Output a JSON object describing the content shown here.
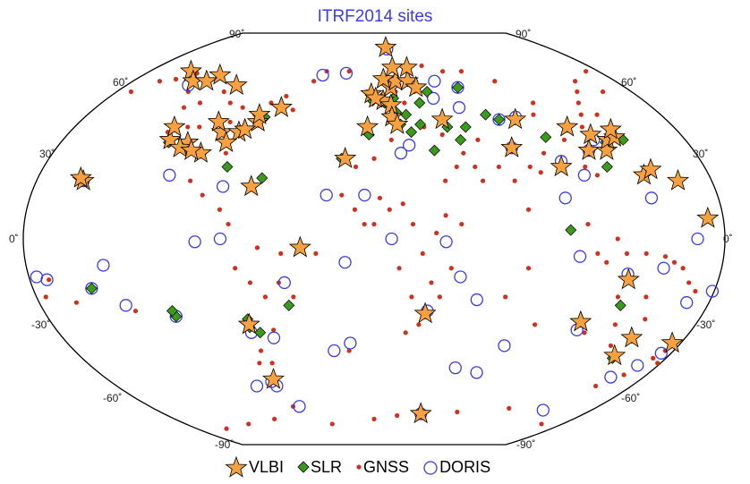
{
  "title": "ITRF2014 sites",
  "lat_labels": {
    "top_left": "90˚",
    "top_right": "90˚",
    "bottom_left": "-90˚",
    "bottom_right": "-90˚",
    "left": [
      "60˚",
      "30˚",
      "0˚",
      "-30˚",
      "-60˚"
    ],
    "right": [
      "60˚",
      "30˚",
      "0˚",
      "-30˚",
      "-60˚"
    ]
  },
  "legend": {
    "vlbi": "VLBI",
    "slr": "SLR",
    "gnss": "GNSS",
    "doris": "DORIS"
  },
  "colors": {
    "vlbi": "#f7a040",
    "slr": "#3a9a1c",
    "gnss": "#d03020",
    "doris": "#3a3aee",
    "title": "#3a3aee"
  },
  "sites": {
    "vlbi": [
      [
        -155,
        20
      ],
      [
        -157,
        21
      ],
      [
        -147,
        65
      ],
      [
        -120,
        63
      ],
      [
        -135,
        60
      ],
      [
        -125,
        60
      ],
      [
        -100,
        58
      ],
      [
        -118,
        35
      ],
      [
        -107,
        34
      ],
      [
        -110,
        32
      ],
      [
        -97,
        30
      ],
      [
        -90,
        38
      ],
      [
        -80,
        38
      ],
      [
        -71,
        42
      ],
      [
        -77,
        39
      ],
      [
        -72,
        45
      ],
      [
        -85,
        34
      ],
      [
        -103,
        31
      ],
      [
        -120,
        40
      ],
      [
        -95,
        42
      ],
      [
        -65,
        18
      ],
      [
        -38,
        -3
      ],
      [
        -70,
        -30
      ],
      [
        -68,
        -52
      ],
      [
        -60,
        48
      ],
      [
        -16,
        28
      ],
      [
        -4,
        40
      ],
      [
        6,
        51
      ],
      [
        11,
        49
      ],
      [
        11,
        44
      ],
      [
        12,
        57
      ],
      [
        14,
        41
      ],
      [
        16,
        60
      ],
      [
        25,
        60
      ],
      [
        27,
        67
      ],
      [
        12,
        79
      ],
      [
        30,
        57
      ],
      [
        42,
        43
      ],
      [
        78,
        32
      ],
      [
        87,
        43
      ],
      [
        102,
        25
      ],
      [
        116,
        40
      ],
      [
        121,
        31
      ],
      [
        127,
        37
      ],
      [
        131,
        31
      ],
      [
        135,
        35
      ],
      [
        140,
        36
      ],
      [
        141,
        39
      ],
      [
        145,
        22
      ],
      [
        150,
        24
      ],
      [
        162,
        20
      ],
      [
        172,
        7
      ],
      [
        147,
        -42
      ],
      [
        133,
        -14
      ],
      [
        115,
        -29
      ],
      [
        149,
        -35
      ],
      [
        175,
        -37
      ],
      [
        40,
        -69
      ],
      [
        28,
        -26
      ],
      [
        7,
        61
      ],
      [
        15,
        67
      ],
      [
        -2,
        54
      ],
      [
        1,
        52
      ]
    ],
    "slr": [
      [
        -156,
        21
      ],
      [
        -149,
        -17
      ],
      [
        -109,
        -27
      ],
      [
        -110,
        -25
      ],
      [
        -70,
        -31
      ],
      [
        -70,
        -28
      ],
      [
        -46,
        -23
      ],
      [
        -118,
        34
      ],
      [
        -105,
        31
      ],
      [
        -97,
        30
      ],
      [
        -77,
        39
      ],
      [
        -71,
        42
      ],
      [
        -80,
        25
      ],
      [
        -65,
        -33
      ],
      [
        -1,
        51
      ],
      [
        5,
        52
      ],
      [
        7,
        50
      ],
      [
        11,
        49
      ],
      [
        13,
        52
      ],
      [
        14,
        46
      ],
      [
        16,
        41
      ],
      [
        -3,
        37
      ],
      [
        25,
        60
      ],
      [
        20,
        45
      ],
      [
        30,
        50
      ],
      [
        37,
        55
      ],
      [
        44,
        40
      ],
      [
        22,
        38
      ],
      [
        28,
        41
      ],
      [
        34,
        31
      ],
      [
        60,
        57
      ],
      [
        70,
        45
      ],
      [
        77,
        43
      ],
      [
        87,
        43
      ],
      [
        100,
        36
      ],
      [
        116,
        40
      ],
      [
        121,
        31
      ],
      [
        127,
        37
      ],
      [
        133,
        34
      ],
      [
        139,
        36
      ],
      [
        144,
        35
      ],
      [
        127,
        25
      ],
      [
        28,
        -26
      ],
      [
        115,
        -29
      ],
      [
        149,
        -35
      ],
      [
        147,
        -43
      ],
      [
        133,
        -23
      ],
      [
        -18,
        28
      ],
      [
        -68,
        44
      ],
      [
        -60,
        21
      ],
      [
        101,
        3
      ],
      [
        55,
        40
      ],
      [
        50,
        35
      ]
    ],
    "doris": [
      [
        -155,
        20
      ],
      [
        -135,
        58
      ],
      [
        -176,
        -13
      ],
      [
        -171,
        -14
      ],
      [
        -149,
        -17
      ],
      [
        -140,
        -9
      ],
      [
        -109,
        -27
      ],
      [
        -134,
        -23
      ],
      [
        -79,
        0
      ],
      [
        -92,
        -1
      ],
      [
        -110,
        22
      ],
      [
        -80,
        18
      ],
      [
        -70,
        -33
      ],
      [
        -70,
        -53
      ],
      [
        -68,
        -55
      ],
      [
        -58,
        -35
      ],
      [
        -47,
        -15
      ],
      [
        -82,
        -55
      ],
      [
        -25,
        15
      ],
      [
        -15,
        -8
      ],
      [
        -5,
        15
      ],
      [
        9,
        0
      ],
      [
        15,
        30
      ],
      [
        -24,
        -40
      ],
      [
        20,
        33
      ],
      [
        37,
        -1
      ],
      [
        45,
        -13
      ],
      [
        55,
        -21
      ],
      [
        67,
        -49
      ],
      [
        52,
        -47
      ],
      [
        77,
        -38
      ],
      [
        -14,
        -37
      ],
      [
        78,
        32
      ],
      [
        45,
        60
      ],
      [
        55,
        48
      ],
      [
        60,
        57
      ],
      [
        77,
        43
      ],
      [
        88,
        44
      ],
      [
        103,
        27
      ],
      [
        121,
        31
      ],
      [
        127,
        35
      ],
      [
        140,
        -67
      ],
      [
        167,
        -46
      ],
      [
        158,
        -51
      ],
      [
        168,
        -22
      ],
      [
        174,
        -41
      ],
      [
        179,
        -18
      ],
      [
        166,
        0
      ],
      [
        145,
        14
      ],
      [
        132,
        -12
      ],
      [
        115,
        -32
      ],
      [
        150,
        -10
      ],
      [
        -40,
        63
      ],
      [
        -22,
        64
      ],
      [
        13,
        78
      ],
      [
        29,
        -25
      ],
      [
        -60,
        -65
      ],
      [
        40,
        -69
      ],
      [
        100,
        14
      ],
      [
        106,
        -6
      ],
      [
        113,
        22
      ],
      [
        40,
        52
      ]
    ],
    "gnss": [
      [
        -150,
        61
      ],
      [
        -140,
        64
      ],
      [
        -130,
        55
      ],
      [
        -123,
        48
      ],
      [
        -122,
        38
      ],
      [
        -117,
        33
      ],
      [
        -112,
        40
      ],
      [
        -105,
        40
      ],
      [
        -98,
        20
      ],
      [
        -90,
        15
      ],
      [
        -95,
        30
      ],
      [
        -88,
        42
      ],
      [
        -83,
        30
      ],
      [
        -75,
        45
      ],
      [
        -68,
        50
      ],
      [
        -60,
        53
      ],
      [
        -52,
        47
      ],
      [
        -45,
        60
      ],
      [
        -38,
        65
      ],
      [
        -20,
        65
      ],
      [
        -115,
        50
      ],
      [
        -105,
        55
      ],
      [
        -95,
        50
      ],
      [
        -85,
        48
      ],
      [
        -80,
        10
      ],
      [
        -75,
        5
      ],
      [
        -72,
        -10
      ],
      [
        -65,
        -15
      ],
      [
        -58,
        -20
      ],
      [
        -50,
        -15
      ],
      [
        -43,
        -20
      ],
      [
        -48,
        -5
      ],
      [
        -60,
        -3
      ],
      [
        -68,
        -40
      ],
      [
        -64,
        -45
      ],
      [
        -72,
        -45
      ],
      [
        -57,
        -32
      ],
      [
        -170,
        -14
      ],
      [
        -160,
        -22
      ],
      [
        -175,
        -20
      ],
      [
        -130,
        -25
      ],
      [
        -10,
        10
      ],
      [
        0,
        5
      ],
      [
        3,
        14
      ],
      [
        8,
        10
      ],
      [
        15,
        12
      ],
      [
        20,
        5
      ],
      [
        25,
        -5
      ],
      [
        32,
        2
      ],
      [
        37,
        8
      ],
      [
        40,
        -10
      ],
      [
        30,
        -15
      ],
      [
        35,
        -20
      ],
      [
        20,
        -20
      ],
      [
        18,
        -33
      ],
      [
        25,
        -30
      ],
      [
        13,
        -10
      ],
      [
        -5,
        5
      ],
      [
        -17,
        15
      ],
      [
        -10,
        25
      ],
      [
        0,
        28
      ],
      [
        10,
        35
      ],
      [
        30,
        40
      ],
      [
        40,
        37
      ],
      [
        50,
        30
      ],
      [
        55,
        25
      ],
      [
        45,
        25
      ],
      [
        38,
        20
      ],
      [
        45,
        5
      ],
      [
        58,
        20
      ],
      [
        60,
        35
      ],
      [
        68,
        25
      ],
      [
        75,
        20
      ],
      [
        80,
        10
      ],
      [
        85,
        25
      ],
      [
        90,
        23
      ],
      [
        95,
        30
      ],
      [
        100,
        45
      ],
      [
        105,
        50
      ],
      [
        110,
        35
      ],
      [
        115,
        25
      ],
      [
        120,
        22
      ],
      [
        125,
        40
      ],
      [
        130,
        45
      ],
      [
        135,
        50
      ],
      [
        140,
        45
      ],
      [
        142,
        55
      ],
      [
        150,
        60
      ],
      [
        160,
        55
      ],
      [
        170,
        65
      ],
      [
        90,
        60
      ],
      [
        70,
        65
      ],
      [
        55,
        65
      ],
      [
        40,
        68
      ],
      [
        110,
        5
      ],
      [
        115,
        -5
      ],
      [
        120,
        -8
      ],
      [
        125,
        0
      ],
      [
        130,
        -5
      ],
      [
        140,
        -5
      ],
      [
        150,
        -6
      ],
      [
        155,
        -8
      ],
      [
        160,
        -10
      ],
      [
        165,
        -15
      ],
      [
        170,
        -18
      ],
      [
        177,
        -38
      ],
      [
        172,
        -43
      ],
      [
        145,
        -20
      ],
      [
        135,
        -30
      ],
      [
        120,
        -33
      ],
      [
        140,
        -38
      ],
      [
        150,
        -28
      ],
      [
        130,
        -20
      ],
      [
        165,
        -50
      ],
      [
        155,
        -55
      ],
      [
        -30,
        -5
      ],
      [
        -15,
        -40
      ],
      [
        70,
        -20
      ],
      [
        80,
        -10
      ],
      [
        90,
        -30
      ],
      [
        -5,
        55
      ],
      [
        5,
        60
      ],
      [
        20,
        50
      ],
      [
        15,
        55
      ],
      [
        28,
        55
      ],
      [
        -160,
        60
      ],
      [
        -170,
        55
      ],
      [
        -65,
        -65
      ],
      [
        -40,
        -75
      ],
      [
        0,
        -72
      ],
      [
        20,
        -70
      ],
      [
        70,
        -68
      ],
      [
        110,
        -66
      ],
      [
        160,
        -75
      ],
      [
        -120,
        -75
      ],
      [
        -90,
        -72
      ],
      [
        -150,
        -78
      ],
      [
        175,
        -40
      ],
      [
        178,
        -45
      ]
    ]
  }
}
